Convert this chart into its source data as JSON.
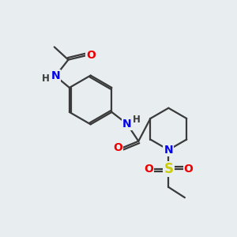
{
  "bg_color": "#e8edf0",
  "atom_colors": {
    "C": "#3a3a3a",
    "N": "#0000ee",
    "O": "#ee0000",
    "S": "#cccc00",
    "H": "#3a3a3a"
  },
  "bond_color": "#3a3a3a",
  "bond_width": 1.6,
  "font_size_atoms": 10,
  "font_size_h": 8.5
}
